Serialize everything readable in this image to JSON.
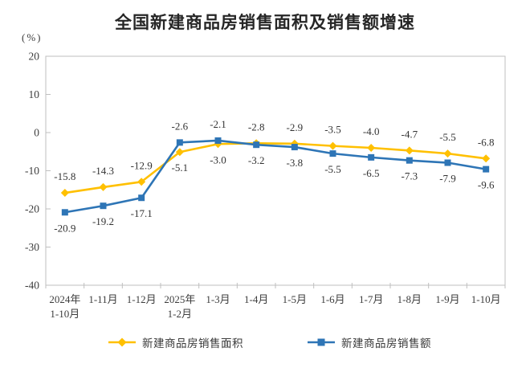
{
  "chart_data": {
    "type": "line",
    "title": "全国新建商品房销售面积及销售额增速",
    "unit_label": "(%)",
    "categories": [
      [
        "2024年",
        "1-10月"
      ],
      "1-11月",
      "1-12月",
      [
        "2025年",
        "1-2月"
      ],
      "1-3月",
      "1-4月",
      "1-5月",
      "1-6月",
      "1-7月",
      "1-8月",
      "1-9月",
      "1-10月"
    ],
    "series": [
      {
        "name": "新建商品房销售面积",
        "color": "#FFC000",
        "marker": "diamond",
        "values": [
          -15.8,
          -14.3,
          -12.9,
          -5.1,
          -3.0,
          -2.8,
          -2.9,
          -3.5,
          -4.0,
          -4.7,
          -5.5,
          -6.8
        ],
        "label_side": [
          "above",
          "above",
          "above",
          "below",
          "below",
          "above",
          "above",
          "above",
          "above",
          "above",
          "above",
          "above"
        ]
      },
      {
        "name": "新建商品房销售额",
        "color": "#2E75B6",
        "marker": "square",
        "values": [
          -20.9,
          -19.2,
          -17.1,
          -2.6,
          -2.1,
          -3.2,
          -3.8,
          -5.5,
          -6.5,
          -7.3,
          -7.9,
          -9.6
        ],
        "label_side": [
          "below",
          "below",
          "below",
          "above",
          "above",
          "below",
          "below",
          "below",
          "below",
          "below",
          "below",
          "below"
        ]
      }
    ],
    "ylim": [
      -40,
      20
    ],
    "yticks": [
      20,
      10,
      0,
      -10,
      -20,
      -30,
      -40
    ],
    "grid": false,
    "legend_position": "bottom",
    "axis_color": "#bfbfbf",
    "text_color": "#3d3d3d",
    "title_color": "#262626"
  }
}
